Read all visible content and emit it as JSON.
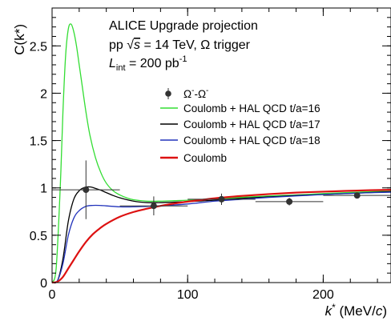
{
  "chart_data": {
    "type": "line",
    "xlabel": "k* (MeV/c)",
    "xlabel_parts": {
      "var": "k",
      "sup": "*",
      "unit": " (MeV/",
      "unit_var": "c",
      "close": ")"
    },
    "ylabel": "C(k*)",
    "xlim": [
      0,
      250
    ],
    "ylim": [
      0,
      2.9
    ],
    "x_ticks": [
      0,
      100,
      200
    ],
    "y_ticks": [
      0,
      0.5,
      1,
      1.5,
      2,
      2.5
    ],
    "x_tick_labels": [
      "0",
      "100",
      "200"
    ],
    "y_tick_labels": [
      "0",
      "0.5",
      "1",
      "1.5",
      "2",
      "2.5"
    ],
    "grid": false,
    "legend_position": "upper-right",
    "annotations": {
      "line1": "ALICE Upgrade projection",
      "line2": {
        "prefix": "pp ",
        "sqrt": "√",
        "var": "s",
        "rest": " = 14 TeV, Ω trigger"
      },
      "line3": {
        "var": "L",
        "sub": "int",
        "rest": " = 200 pb",
        "sup": "-1"
      }
    },
    "data_series": {
      "name": "Ω⁻-Ω⁻",
      "legend_label": {
        "a": "Ω",
        "a_sup": "-",
        "sep": "-",
        "b": "Ω",
        "b_sup": "-"
      },
      "color": "#333333",
      "points": [
        {
          "x": 25,
          "y": 0.98,
          "xerr": 25,
          "yerr": 0.31
        },
        {
          "x": 75,
          "y": 0.81,
          "xerr": 25,
          "yerr": 0.1
        },
        {
          "x": 125,
          "y": 0.88,
          "xerr": 25,
          "yerr": 0.06
        },
        {
          "x": 175,
          "y": 0.855,
          "xerr": 25,
          "yerr": 0.04
        },
        {
          "x": 225,
          "y": 0.92,
          "xerr": 25,
          "yerr": 0.03
        }
      ]
    },
    "series": [
      {
        "name": "Coulomb + HAL QCD t/a=16",
        "color": "#33dd33",
        "x": [
          0,
          3,
          6,
          8,
          10,
          12,
          14,
          16,
          18,
          20,
          22,
          25,
          28,
          32,
          36,
          40,
          45,
          50,
          55,
          60,
          70,
          80,
          90,
          100,
          120,
          140,
          160,
          180,
          200,
          225,
          250
        ],
        "y": [
          0,
          0.15,
          1.0,
          1.8,
          2.4,
          2.68,
          2.73,
          2.65,
          2.5,
          2.3,
          2.1,
          1.8,
          1.55,
          1.32,
          1.16,
          1.05,
          0.97,
          0.925,
          0.895,
          0.875,
          0.86,
          0.86,
          0.865,
          0.87,
          0.885,
          0.9,
          0.915,
          0.925,
          0.94,
          0.955,
          0.965
        ]
      },
      {
        "name": "Coulomb + HAL QCD t/a=17",
        "color": "#000000",
        "x": [
          0,
          4,
          8,
          12,
          16,
          20,
          24,
          28,
          32,
          36,
          40,
          45,
          50,
          60,
          70,
          80,
          90,
          100,
          120,
          140,
          160,
          180,
          200,
          225,
          250
        ],
        "y": [
          0,
          0.02,
          0.25,
          0.65,
          0.88,
          0.97,
          1.005,
          1.01,
          0.995,
          0.975,
          0.95,
          0.92,
          0.895,
          0.86,
          0.845,
          0.845,
          0.85,
          0.855,
          0.87,
          0.89,
          0.905,
          0.92,
          0.93,
          0.945,
          0.96
        ]
      },
      {
        "name": "Coulomb + HAL QCD t/a=18",
        "color": "#2233bb",
        "x": [
          0,
          4,
          8,
          12,
          16,
          20,
          25,
          30,
          35,
          40,
          50,
          60,
          70,
          80,
          100,
          120,
          140,
          160,
          180,
          200,
          225,
          250
        ],
        "y": [
          0,
          0.02,
          0.2,
          0.5,
          0.68,
          0.76,
          0.805,
          0.815,
          0.815,
          0.81,
          0.8,
          0.8,
          0.805,
          0.81,
          0.83,
          0.86,
          0.88,
          0.9,
          0.915,
          0.93,
          0.945,
          0.955
        ]
      },
      {
        "name": "Coulomb",
        "color": "#dd1111",
        "x": [
          0,
          4,
          8,
          12,
          16,
          20,
          25,
          30,
          35,
          40,
          50,
          60,
          70,
          80,
          90,
          100,
          120,
          140,
          160,
          180,
          200,
          225,
          250
        ],
        "y": [
          0,
          0.01,
          0.06,
          0.15,
          0.24,
          0.33,
          0.43,
          0.51,
          0.57,
          0.62,
          0.695,
          0.745,
          0.78,
          0.81,
          0.835,
          0.855,
          0.89,
          0.915,
          0.935,
          0.95,
          0.96,
          0.972,
          0.98
        ]
      }
    ]
  }
}
